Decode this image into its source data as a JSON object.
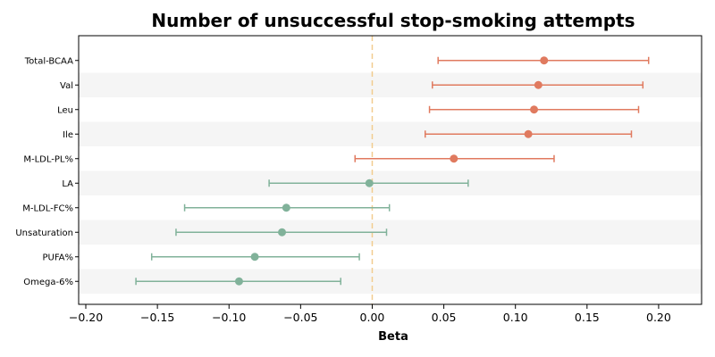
{
  "chart_data": {
    "type": "forest",
    "title": "Number of unsuccessful stop-smoking attempts",
    "xlabel": "Beta",
    "ylabel": "",
    "xlim": [
      -0.205,
      0.23
    ],
    "xticks": [
      -0.2,
      -0.15,
      -0.1,
      -0.05,
      0.0,
      0.05,
      0.1,
      0.15,
      0.2
    ],
    "xtick_labels": [
      "−0.20",
      "−0.15",
      "−0.10",
      "−0.05",
      "0.00",
      "0.05",
      "0.10",
      "0.15",
      "0.20"
    ],
    "reference_line": 0.0,
    "grid": false,
    "alternating_row_shading": true,
    "colors": {
      "positive": "#e07a5f",
      "negative": "#81b29a",
      "reference": "#f2cc8f",
      "band": "#f5f5f5"
    },
    "items": [
      {
        "label": "Total-BCAA",
        "beta": 0.12,
        "lo": 0.046,
        "hi": 0.193
      },
      {
        "label": "Val",
        "beta": 0.116,
        "lo": 0.042,
        "hi": 0.189
      },
      {
        "label": "Leu",
        "beta": 0.113,
        "lo": 0.04,
        "hi": 0.186
      },
      {
        "label": "Ile",
        "beta": 0.109,
        "lo": 0.037,
        "hi": 0.181
      },
      {
        "label": "M-LDL-PL%",
        "beta": 0.057,
        "lo": -0.012,
        "hi": 0.127
      },
      {
        "label": "LA",
        "beta": -0.002,
        "lo": -0.072,
        "hi": 0.067
      },
      {
        "label": "M-LDL-FC%",
        "beta": -0.06,
        "lo": -0.131,
        "hi": 0.012
      },
      {
        "label": "Unsaturation",
        "beta": -0.063,
        "lo": -0.137,
        "hi": 0.01
      },
      {
        "label": "PUFA%",
        "beta": -0.082,
        "lo": -0.154,
        "hi": -0.009
      },
      {
        "label": "Omega-6%",
        "beta": -0.093,
        "lo": -0.165,
        "hi": -0.022
      }
    ]
  }
}
